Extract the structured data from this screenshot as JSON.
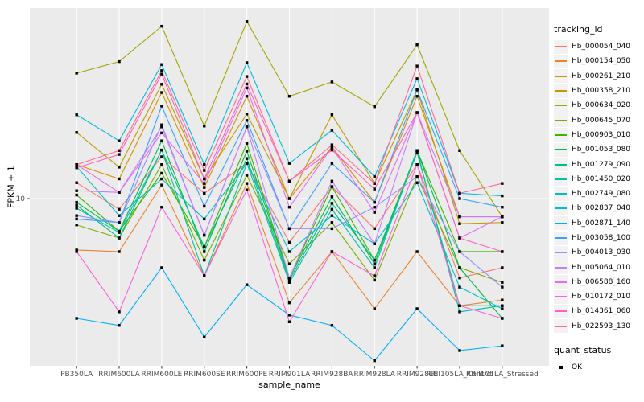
{
  "chart_data": {
    "type": "line",
    "title": "",
    "xlabel": "sample_name",
    "ylabel": "FPKM + 1",
    "y_scale": "log10",
    "ylim": [
      1.6,
      80
    ],
    "grid": "major",
    "panel_bg": "#EBEBEB",
    "grid_color": "#FFFFFF",
    "tick_label_color": "#4D4D4D",
    "point_marker": "black-square",
    "y_ticks": [
      {
        "value": 10,
        "label": "10"
      }
    ],
    "categories": [
      "PB350LA",
      "RRIM600LA",
      "RRIM600LE",
      "RRIM600SE",
      "RRIM600PE",
      "RRIM901LA",
      "RRIM928BA",
      "RRIM928LA",
      "RRIM928LE",
      "RRII105LA_Control",
      "RRII105LA_Stressed"
    ],
    "legend": {
      "title": "tracking_id",
      "position": "right"
    },
    "legend2": {
      "title": "quant_status",
      "items": [
        {
          "label": "OK",
          "marker": "black-square"
        }
      ]
    },
    "series": [
      {
        "name": "Hb_000054_040",
        "color": "#F8766D",
        "values": [
          11.9,
          8.9,
          15.8,
          10.6,
          14.7,
          6.2,
          11.4,
          7.2,
          14.5,
          4.2,
          4.7
        ]
      },
      {
        "name": "Hb_000154_050",
        "color": "#EA8331",
        "values": [
          5.7,
          5.6,
          11.6,
          4.3,
          11.8,
          3.2,
          5.6,
          3.0,
          5.6,
          3.1,
          3.3
        ]
      },
      {
        "name": "Hb_000261_210",
        "color": "#D89000",
        "values": [
          14.5,
          12.4,
          31.9,
          11.3,
          30.6,
          10.0,
          17.6,
          9.6,
          30.6,
          8.2,
          8.2
        ]
      },
      {
        "name": "Hb_000358_210",
        "color": "#C09B00",
        "values": [
          20.6,
          14.1,
          34.9,
          12.4,
          25.2,
          10.0,
          25.0,
          11.8,
          32.8,
          7.6,
          7.7
        ]
      },
      {
        "name": "Hb_000634_020",
        "color": "#A3A500",
        "values": [
          39.4,
          44.7,
          65.8,
          22.1,
          69.3,
          30.6,
          35.8,
          27.3,
          53.7,
          16.9,
          8.2
        ]
      },
      {
        "name": "Hb_000645_070",
        "color": "#7CAE00",
        "values": [
          7.5,
          6.5,
          14.5,
          5.1,
          12.9,
          4.9,
          7.7,
          4.1,
          12.7,
          4.7,
          4.0
        ]
      },
      {
        "name": "Hb_000903_010",
        "color": "#39B600",
        "values": [
          10.4,
          7.0,
          13.2,
          5.9,
          18.3,
          4.2,
          11.4,
          5.1,
          16.9,
          5.6,
          5.6
        ]
      },
      {
        "name": "Hb_001053_080",
        "color": "#00BB4E",
        "values": [
          9.6,
          7.0,
          18.8,
          5.6,
          16.8,
          4.2,
          10.2,
          4.9,
          16.9,
          4.7,
          2.7
        ]
      },
      {
        "name": "Hb_001279_090",
        "color": "#00BF7D",
        "values": [
          9.3,
          6.5,
          17.0,
          5.9,
          15.5,
          4.1,
          9.5,
          5.1,
          16.5,
          3.1,
          3.1
        ]
      },
      {
        "name": "Hb_001450_020",
        "color": "#00C1A3",
        "values": [
          9.0,
          6.9,
          17.0,
          4.3,
          14.7,
          4.0,
          8.9,
          4.7,
          16.9,
          2.9,
          3.1
        ]
      },
      {
        "name": "Hb_002749_080",
        "color": "#00BFC4",
        "values": [
          14.2,
          8.3,
          12.4,
          8.0,
          14.7,
          5.6,
          8.3,
          6.1,
          11.9,
          3.8,
          3.0
        ]
      },
      {
        "name": "Hb_002837_040",
        "color": "#00BAE0",
        "values": [
          25.0,
          18.8,
          43.3,
          14.5,
          44.2,
          14.7,
          21.1,
          12.7,
          37.1,
          10.6,
          10.3
        ]
      },
      {
        "name": "Hb_002871_140",
        "color": "#00B0F6",
        "values": [
          2.7,
          2.5,
          4.7,
          2.2,
          3.9,
          2.8,
          2.5,
          1.7,
          3.0,
          1.9,
          2.0
        ]
      },
      {
        "name": "Hb_003058_100",
        "color": "#35A2FF",
        "values": [
          8.0,
          7.7,
          27.5,
          9.2,
          23.5,
          7.2,
          14.7,
          9.6,
          32.8,
          10.0,
          9.1
        ]
      },
      {
        "name": "Hb_004013_030",
        "color": "#9590FF",
        "values": [
          8.3,
          7.7,
          22.4,
          6.7,
          21.9,
          7.2,
          7.2,
          9.1,
          12.7,
          5.6,
          3.8
        ]
      },
      {
        "name": "Hb_005064_010",
        "color": "#C77CFF",
        "values": [
          10.9,
          10.7,
          21.9,
          6.7,
          21.9,
          4.2,
          12.1,
          6.1,
          25.6,
          8.2,
          8.2
        ]
      },
      {
        "name": "Hb_006588_160",
        "color": "#E76BF3",
        "values": [
          14.5,
          10.7,
          20.5,
          11.8,
          33.5,
          9.1,
          17.5,
          8.6,
          25.6,
          6.5,
          8.2
        ]
      },
      {
        "name": "Hb_010172_010",
        "color": "#FA62DB",
        "values": [
          5.6,
          2.9,
          9.1,
          4.3,
          11.0,
          2.6,
          5.6,
          4.3,
          14.5,
          3.1,
          2.7
        ]
      },
      {
        "name": "Hb_014361_060",
        "color": "#FF62BC",
        "values": [
          14.0,
          16.2,
          39.0,
          12.4,
          35.0,
          12.1,
          17.0,
          11.1,
          25.6,
          6.5,
          5.6
        ]
      },
      {
        "name": "Hb_022593_130",
        "color": "#FF6A98",
        "values": [
          14.5,
          16.9,
          40.5,
          13.6,
          38.0,
          12.1,
          18.0,
          11.8,
          42.6,
          10.6,
          11.8
        ]
      }
    ]
  }
}
